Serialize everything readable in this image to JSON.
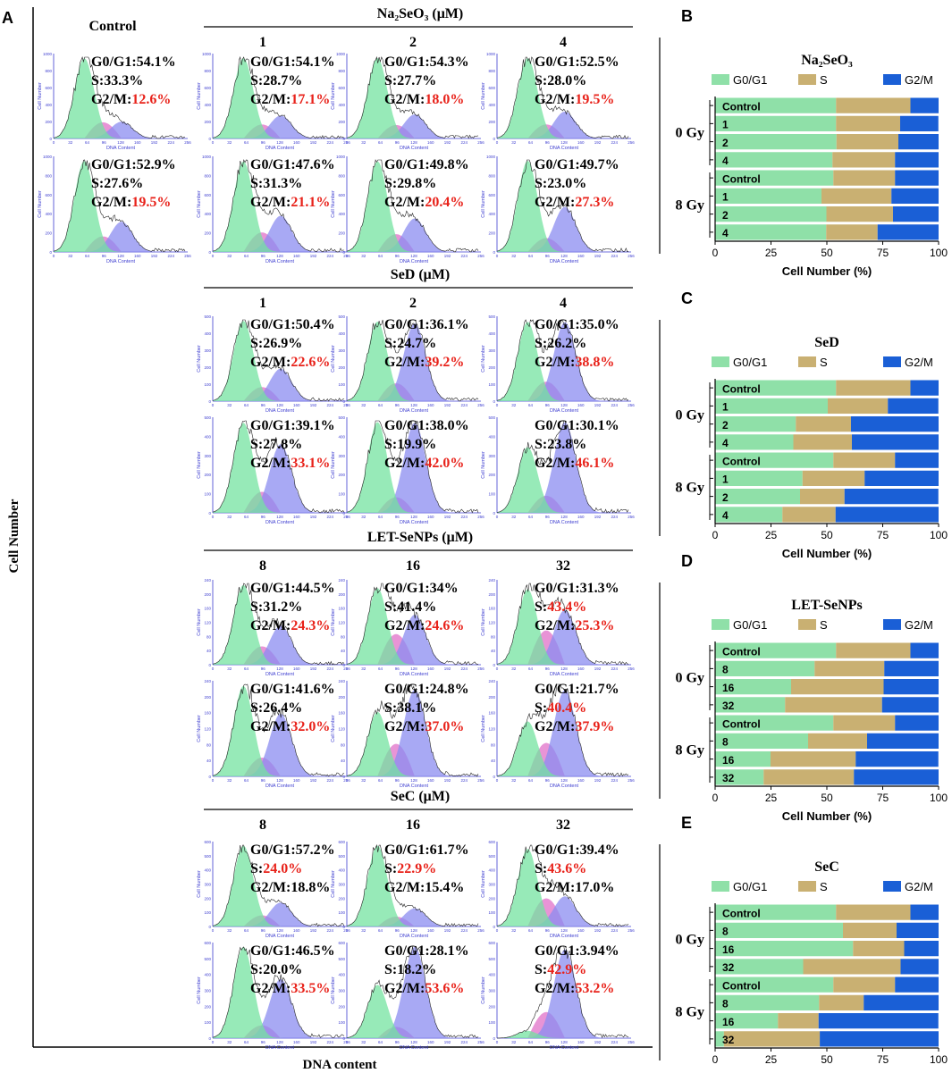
{
  "figure": {
    "panel_a_label": "A",
    "y_axis_label": "Cell Number",
    "x_axis_label": "DNA content",
    "mini_y_label": "Cell Number",
    "mini_x_label": "DNA Content",
    "mini_x_ticks": [
      "0",
      "32",
      "64",
      "96",
      "128",
      "160",
      "192",
      "224",
      "256"
    ],
    "label_g0g1": "G0/G1:",
    "label_s": "S:",
    "label_g2m": "G2/M:"
  },
  "colors": {
    "g0g1": "#8fe0a8",
    "s": "#c9b072",
    "g2m": "#1a5fd6",
    "highlight": "#e8221a",
    "mini_axis": "#3d3dd0"
  },
  "control_header": "Control",
  "groups": [
    {
      "title": "Na₂SeO₃ (μM)",
      "cols": [
        "1",
        "2",
        "4"
      ],
      "ticks": [
        "0",
        "200",
        "400",
        "600",
        "800",
        "1000"
      ],
      "rows": [
        [
          {
            "g0g1": "54.1%",
            "s": "28.7%",
            "g2m": "17.1%",
            "hl": "g2m"
          },
          {
            "g0g1": "54.3%",
            "s": "27.7%",
            "g2m": "18.0%",
            "hl": "g2m"
          },
          {
            "g0g1": "52.5%",
            "s": "28.0%",
            "g2m": "19.5%",
            "hl": "g2m"
          }
        ],
        [
          {
            "g0g1": "47.6%",
            "s": "31.3%",
            "g2m": "21.1%",
            "hl": "g2m"
          },
          {
            "g0g1": "49.8%",
            "s": "29.8%",
            "g2m": "20.4%",
            "hl": "g2m"
          },
          {
            "g0g1": "49.7%",
            "s": "23.0%",
            "g2m": "27.3%",
            "hl": "g2m"
          }
        ]
      ],
      "control": [
        {
          "g0g1": "54.1%",
          "s": "33.3%",
          "g2m": "12.6%",
          "hl": "g2m"
        },
        {
          "g0g1": "52.9%",
          "s": "27.6%",
          "g2m": "19.5%",
          "hl": "g2m"
        }
      ]
    },
    {
      "title": "SeD (μM)",
      "cols": [
        "1",
        "2",
        "4"
      ],
      "ticks": [
        "0",
        "100",
        "200",
        "300",
        "400",
        "500"
      ],
      "rows": [
        [
          {
            "g0g1": "50.4%",
            "s": "26.9%",
            "g2m": "22.6%",
            "hl": "g2m"
          },
          {
            "g0g1": "36.1%",
            "s": "24.7%",
            "g2m": "39.2%",
            "hl": "g2m"
          },
          {
            "g0g1": "35.0%",
            "s": "26.2%",
            "g2m": "38.8%",
            "hl": "g2m"
          }
        ],
        [
          {
            "g0g1": "39.1%",
            "s": "27.8%",
            "g2m": "33.1%",
            "hl": "g2m"
          },
          {
            "g0g1": "38.0%",
            "s": "19.9%",
            "g2m": "42.0%",
            "hl": "g2m"
          },
          {
            "g0g1": "30.1%",
            "s": "23.8%",
            "g2m": "46.1%",
            "hl": "g2m"
          }
        ]
      ]
    },
    {
      "title": "LET-SeNPs (μM)",
      "cols": [
        "8",
        "16",
        "32"
      ],
      "ticks": [
        "0",
        "40",
        "80",
        "120",
        "160",
        "200",
        "240"
      ],
      "rows": [
        [
          {
            "g0g1": "44.5%",
            "s": "31.2%",
            "g2m": "24.3%",
            "hl": "g2m"
          },
          {
            "g0g1": "34%",
            "s": "41.4%",
            "g2m": "24.6%",
            "hl": "g2m"
          },
          {
            "g0g1": "31.3%",
            "s": "43.4%",
            "g2m": "25.3%",
            "hl": "both"
          }
        ],
        [
          {
            "g0g1": "41.6%",
            "s": "26.4%",
            "g2m": "32.0%",
            "hl": "g2m"
          },
          {
            "g0g1": "24.8%",
            "s": "38.1%",
            "g2m": "37.0%",
            "hl": "g2m"
          },
          {
            "g0g1": "21.7%",
            "s": "40.4%",
            "g2m": "37.9%",
            "hl": "both"
          }
        ]
      ]
    },
    {
      "title": "SeC (μM)",
      "cols": [
        "8",
        "16",
        "32"
      ],
      "ticks": [
        "0",
        "100",
        "200",
        "300",
        "400",
        "500",
        "600"
      ],
      "rows": [
        [
          {
            "g0g1": "57.2%",
            "s": "24.0%",
            "g2m": "18.8%",
            "hl": "s"
          },
          {
            "g0g1": "61.7%",
            "s": "22.9%",
            "g2m": "15.4%",
            "hl": "s"
          },
          {
            "g0g1": "39.4%",
            "s": "43.6%",
            "g2m": "17.0%",
            "hl": "s"
          }
        ],
        [
          {
            "g0g1": "46.5%",
            "s": "20.0%",
            "g2m": "33.5%",
            "hl": "g2m"
          },
          {
            "g0g1": "28.1%",
            "s": "18.2%",
            "g2m": "53.6%",
            "hl": "g2m"
          },
          {
            "g0g1": "3.94%",
            "s": "42.9%",
            "g2m": "53.2%",
            "hl": "both"
          }
        ]
      ]
    }
  ],
  "chart_data": [
    {
      "panel": "B",
      "type": "bar",
      "title": "Na₂SeO₃",
      "orientation": "horizontal-stacked",
      "groups": [
        "0 Gy",
        "8 Gy"
      ],
      "categories": [
        "Control",
        "1",
        "2",
        "4",
        "Control",
        "1",
        "2",
        "4"
      ],
      "series": [
        {
          "name": "G0/G1",
          "values": [
            54.1,
            54.1,
            54.3,
            52.5,
            52.9,
            47.6,
            49.8,
            49.7
          ]
        },
        {
          "name": "S",
          "values": [
            33.3,
            28.7,
            27.7,
            28.0,
            27.6,
            31.3,
            29.8,
            23.0
          ]
        },
        {
          "name": "G2/M",
          "values": [
            12.6,
            17.1,
            18.0,
            19.5,
            19.5,
            21.1,
            20.4,
            27.3
          ]
        }
      ],
      "xlabel": "Cell Number (%)",
      "xlim": [
        0,
        100
      ],
      "xticks": [
        "0",
        "25",
        "50",
        "75",
        "100"
      ]
    },
    {
      "panel": "C",
      "type": "bar",
      "title": "SeD",
      "orientation": "horizontal-stacked",
      "groups": [
        "0 Gy",
        "8 Gy"
      ],
      "categories": [
        "Control",
        "1",
        "2",
        "4",
        "Control",
        "1",
        "2",
        "4"
      ],
      "series": [
        {
          "name": "G0/G1",
          "values": [
            54.1,
            50.4,
            36.1,
            35.0,
            52.9,
            39.1,
            38.0,
            30.1
          ]
        },
        {
          "name": "S",
          "values": [
            33.3,
            26.9,
            24.7,
            26.2,
            27.6,
            27.8,
            19.9,
            23.8
          ]
        },
        {
          "name": "G2/M",
          "values": [
            12.6,
            22.6,
            39.2,
            38.8,
            19.5,
            33.1,
            42.0,
            46.1
          ]
        }
      ],
      "xlabel": "Cell Number (%)",
      "xlim": [
        0,
        100
      ],
      "xticks": [
        "0",
        "25",
        "50",
        "75",
        "100"
      ]
    },
    {
      "panel": "D",
      "type": "bar",
      "title": "LET-SeNPs",
      "orientation": "horizontal-stacked",
      "groups": [
        "0 Gy",
        "8 Gy"
      ],
      "categories": [
        "Control",
        "8",
        "16",
        "32",
        "Control",
        "8",
        "16",
        "32"
      ],
      "series": [
        {
          "name": "G0/G1",
          "values": [
            54.1,
            44.5,
            34.0,
            31.3,
            52.9,
            41.6,
            24.8,
            21.7
          ]
        },
        {
          "name": "S",
          "values": [
            33.3,
            31.2,
            41.4,
            43.4,
            27.6,
            26.4,
            38.1,
            40.4
          ]
        },
        {
          "name": "G2/M",
          "values": [
            12.6,
            24.3,
            24.6,
            25.3,
            19.5,
            32.0,
            37.0,
            37.9
          ]
        }
      ],
      "xlabel": "Cell Number (%)",
      "xlim": [
        0,
        100
      ],
      "xticks": [
        "0",
        "25",
        "50",
        "75",
        "100"
      ]
    },
    {
      "panel": "E",
      "type": "bar",
      "title": "SeC",
      "orientation": "horizontal-stacked",
      "groups": [
        "0 Gy",
        "8 Gy"
      ],
      "categories": [
        "Control",
        "8",
        "16",
        "32",
        "Control",
        "8",
        "16",
        "32"
      ],
      "series": [
        {
          "name": "G0/G1",
          "values": [
            54.1,
            57.2,
            61.7,
            39.4,
            52.9,
            46.5,
            28.1,
            3.94
          ]
        },
        {
          "name": "S",
          "values": [
            33.3,
            24.0,
            22.9,
            43.6,
            27.6,
            20.0,
            18.2,
            42.9
          ]
        },
        {
          "name": "G2/M",
          "values": [
            12.6,
            18.8,
            15.4,
            17.0,
            19.5,
            33.5,
            53.6,
            53.2
          ]
        }
      ],
      "xlabel": "Cell Number (%)",
      "xlim": [
        0,
        100
      ],
      "xticks": [
        "0",
        "25",
        "50",
        "75",
        "100"
      ]
    }
  ]
}
